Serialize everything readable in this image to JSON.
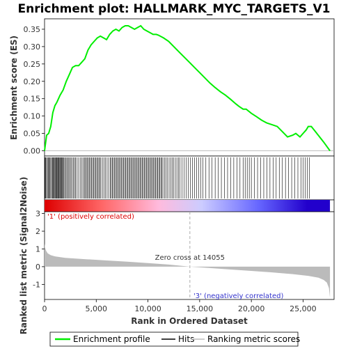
{
  "chart_data": {
    "type": "line",
    "title": "Enrichment plot: HALLMARK_MYC_TARGETS_V1",
    "xlabel": "Rank in Ordered Dataset",
    "xlim": [
      0,
      28000
    ],
    "x_ticks": [
      0,
      5000,
      10000,
      15000,
      20000,
      25000
    ],
    "x_tick_labels": [
      "0",
      "5,000",
      "10,000",
      "15,000",
      "20,000",
      "25,000"
    ],
    "es_panel": {
      "ylabel": "Enrichment score (ES)",
      "ylim": [
        -0.015,
        0.38
      ],
      "y_ticks": [
        0.0,
        0.05,
        0.1,
        0.15,
        0.2,
        0.25,
        0.3,
        0.35
      ],
      "y_tick_labels": [
        "0.00",
        "0.05",
        "0.10",
        "0.15",
        "0.20",
        "0.25",
        "0.30",
        "0.35"
      ],
      "series": [
        {
          "name": "Enrichment profile",
          "color": "#00ee00",
          "x": [
            0,
            200,
            400,
            600,
            800,
            1000,
            1200,
            1500,
            1800,
            2100,
            2400,
            2700,
            3000,
            3300,
            3600,
            3900,
            4200,
            4500,
            4800,
            5100,
            5400,
            5700,
            6000,
            6300,
            6600,
            6900,
            7200,
            7500,
            7800,
            8100,
            8400,
            8700,
            9000,
            9300,
            9600,
            9900,
            10200,
            10500,
            10800,
            11000,
            11500,
            12000,
            12500,
            13000,
            13500,
            14000,
            14500,
            15000,
            15500,
            16000,
            16500,
            17000,
            17500,
            18000,
            18500,
            18800,
            19200,
            19500,
            20000,
            20500,
            21000,
            21500,
            22000,
            22500,
            23000,
            23500,
            24000,
            24300,
            24700,
            25000,
            25300,
            25500,
            25800,
            26200,
            26600,
            27000,
            27600
          ],
          "y": [
            0.0,
            0.045,
            0.05,
            0.07,
            0.11,
            0.13,
            0.14,
            0.16,
            0.175,
            0.2,
            0.22,
            0.24,
            0.245,
            0.245,
            0.255,
            0.265,
            0.29,
            0.305,
            0.315,
            0.325,
            0.33,
            0.325,
            0.32,
            0.335,
            0.345,
            0.35,
            0.345,
            0.355,
            0.36,
            0.36,
            0.355,
            0.35,
            0.355,
            0.36,
            0.35,
            0.345,
            0.34,
            0.335,
            0.335,
            0.333,
            0.325,
            0.315,
            0.3,
            0.285,
            0.27,
            0.255,
            0.24,
            0.225,
            0.21,
            0.195,
            0.182,
            0.17,
            0.16,
            0.148,
            0.135,
            0.128,
            0.12,
            0.12,
            0.108,
            0.098,
            0.088,
            0.08,
            0.075,
            0.07,
            0.055,
            0.04,
            0.045,
            0.05,
            0.04,
            0.05,
            0.06,
            0.07,
            0.07,
            0.055,
            0.04,
            0.025,
            0.0
          ]
        }
      ]
    },
    "hits_panel": {
      "series_name": "Hits",
      "color": "#000000",
      "hit_positions": [
        20,
        60,
        120,
        200,
        280,
        360,
        450,
        520,
        600,
        680,
        760,
        820,
        880,
        950,
        1020,
        1090,
        1150,
        1210,
        1280,
        1340,
        1400,
        1470,
        1540,
        1600,
        1660,
        1730,
        1800,
        1870,
        1950,
        2050,
        2150,
        2260,
        2350,
        2450,
        2560,
        2680,
        2800,
        2900,
        3000,
        3150,
        3300,
        3450,
        3600,
        3720,
        3850,
        3950,
        4050,
        4150,
        4250,
        4350,
        4450,
        4550,
        4650,
        4750,
        4850,
        4950,
        5050,
        5150,
        5250,
        5350,
        5450,
        5600,
        5750,
        5900,
        6050,
        6200,
        6350,
        6450,
        6550,
        6650,
        6750,
        6850,
        6950,
        7050,
        7150,
        7250,
        7350,
        7450,
        7550,
        7650,
        7750,
        7850,
        7950,
        8050,
        8150,
        8250,
        8350,
        8450,
        8550,
        8650,
        8750,
        8850,
        8950,
        9050,
        9150,
        9250,
        9350,
        9450,
        9550,
        9650,
        9750,
        9850,
        9950,
        10050,
        10150,
        10250,
        10350,
        10450,
        10550,
        10650,
        10750,
        10850,
        10950,
        11050,
        11150,
        11250,
        11350,
        11450,
        11600,
        11750,
        11900,
        12050,
        12200,
        12350,
        12500,
        12650,
        12800,
        12950,
        13100,
        13300,
        13500,
        13700,
        13900,
        14100,
        14300,
        14500,
        14700,
        14900,
        15100,
        15300,
        15600,
        15900,
        16200,
        16500,
        16800,
        17100,
        17400,
        17700,
        18000,
        18300,
        18600,
        18900,
        19200,
        19400,
        19600,
        19800,
        20000,
        20300,
        20600,
        20900,
        21200,
        21500,
        21800,
        22100,
        22400,
        22700,
        23000,
        23300,
        23600,
        23900,
        24200,
        24500,
        24800,
        25000,
        25200,
        25400,
        25600
      ]
    },
    "heatmap_bar": {
      "colors": [
        "#dd0000",
        "#ff6666",
        "#ffbbdd",
        "#ccccff",
        "#6666ff",
        "#2200cc"
      ]
    },
    "metric_panel": {
      "ylabel": "Ranked list metric (Signal2Noise)",
      "ylim": [
        -1.85,
        3.1
      ],
      "y_ticks": [
        3,
        2,
        1,
        0,
        -1
      ],
      "y_tick_labels": [
        "3",
        "2",
        "1",
        "0",
        "-1"
      ],
      "series_name": "Ranking metric scores",
      "color": "#bbbbbb",
      "x": [
        0,
        50,
        150,
        300,
        600,
        1000,
        2000,
        4000,
        6000,
        8000,
        10000,
        12000,
        14055,
        16000,
        18000,
        20000,
        22000,
        24000,
        25500,
        26500,
        27000,
        27300,
        27500,
        27600
      ],
      "y": [
        1.3,
        1.1,
        0.9,
        0.75,
        0.65,
        0.58,
        0.5,
        0.42,
        0.35,
        0.28,
        0.2,
        0.12,
        0.0,
        -0.08,
        -0.16,
        -0.24,
        -0.32,
        -0.42,
        -0.52,
        -0.62,
        -0.75,
        -0.9,
        -1.2,
        -1.75
      ],
      "zero_cross_label": "Zero cross at 14055",
      "zero_cross_x": 14055,
      "positive_label": "'1' (positively correlated)",
      "negative_label": "'3' (negatively correlated)"
    },
    "legend": {
      "items": [
        {
          "name": "Enrichment profile",
          "color": "#00ee00"
        },
        {
          "name": "Hits",
          "color": "#000000"
        },
        {
          "name": "Ranking metric scores",
          "color": "#bbbbbb"
        }
      ]
    }
  }
}
